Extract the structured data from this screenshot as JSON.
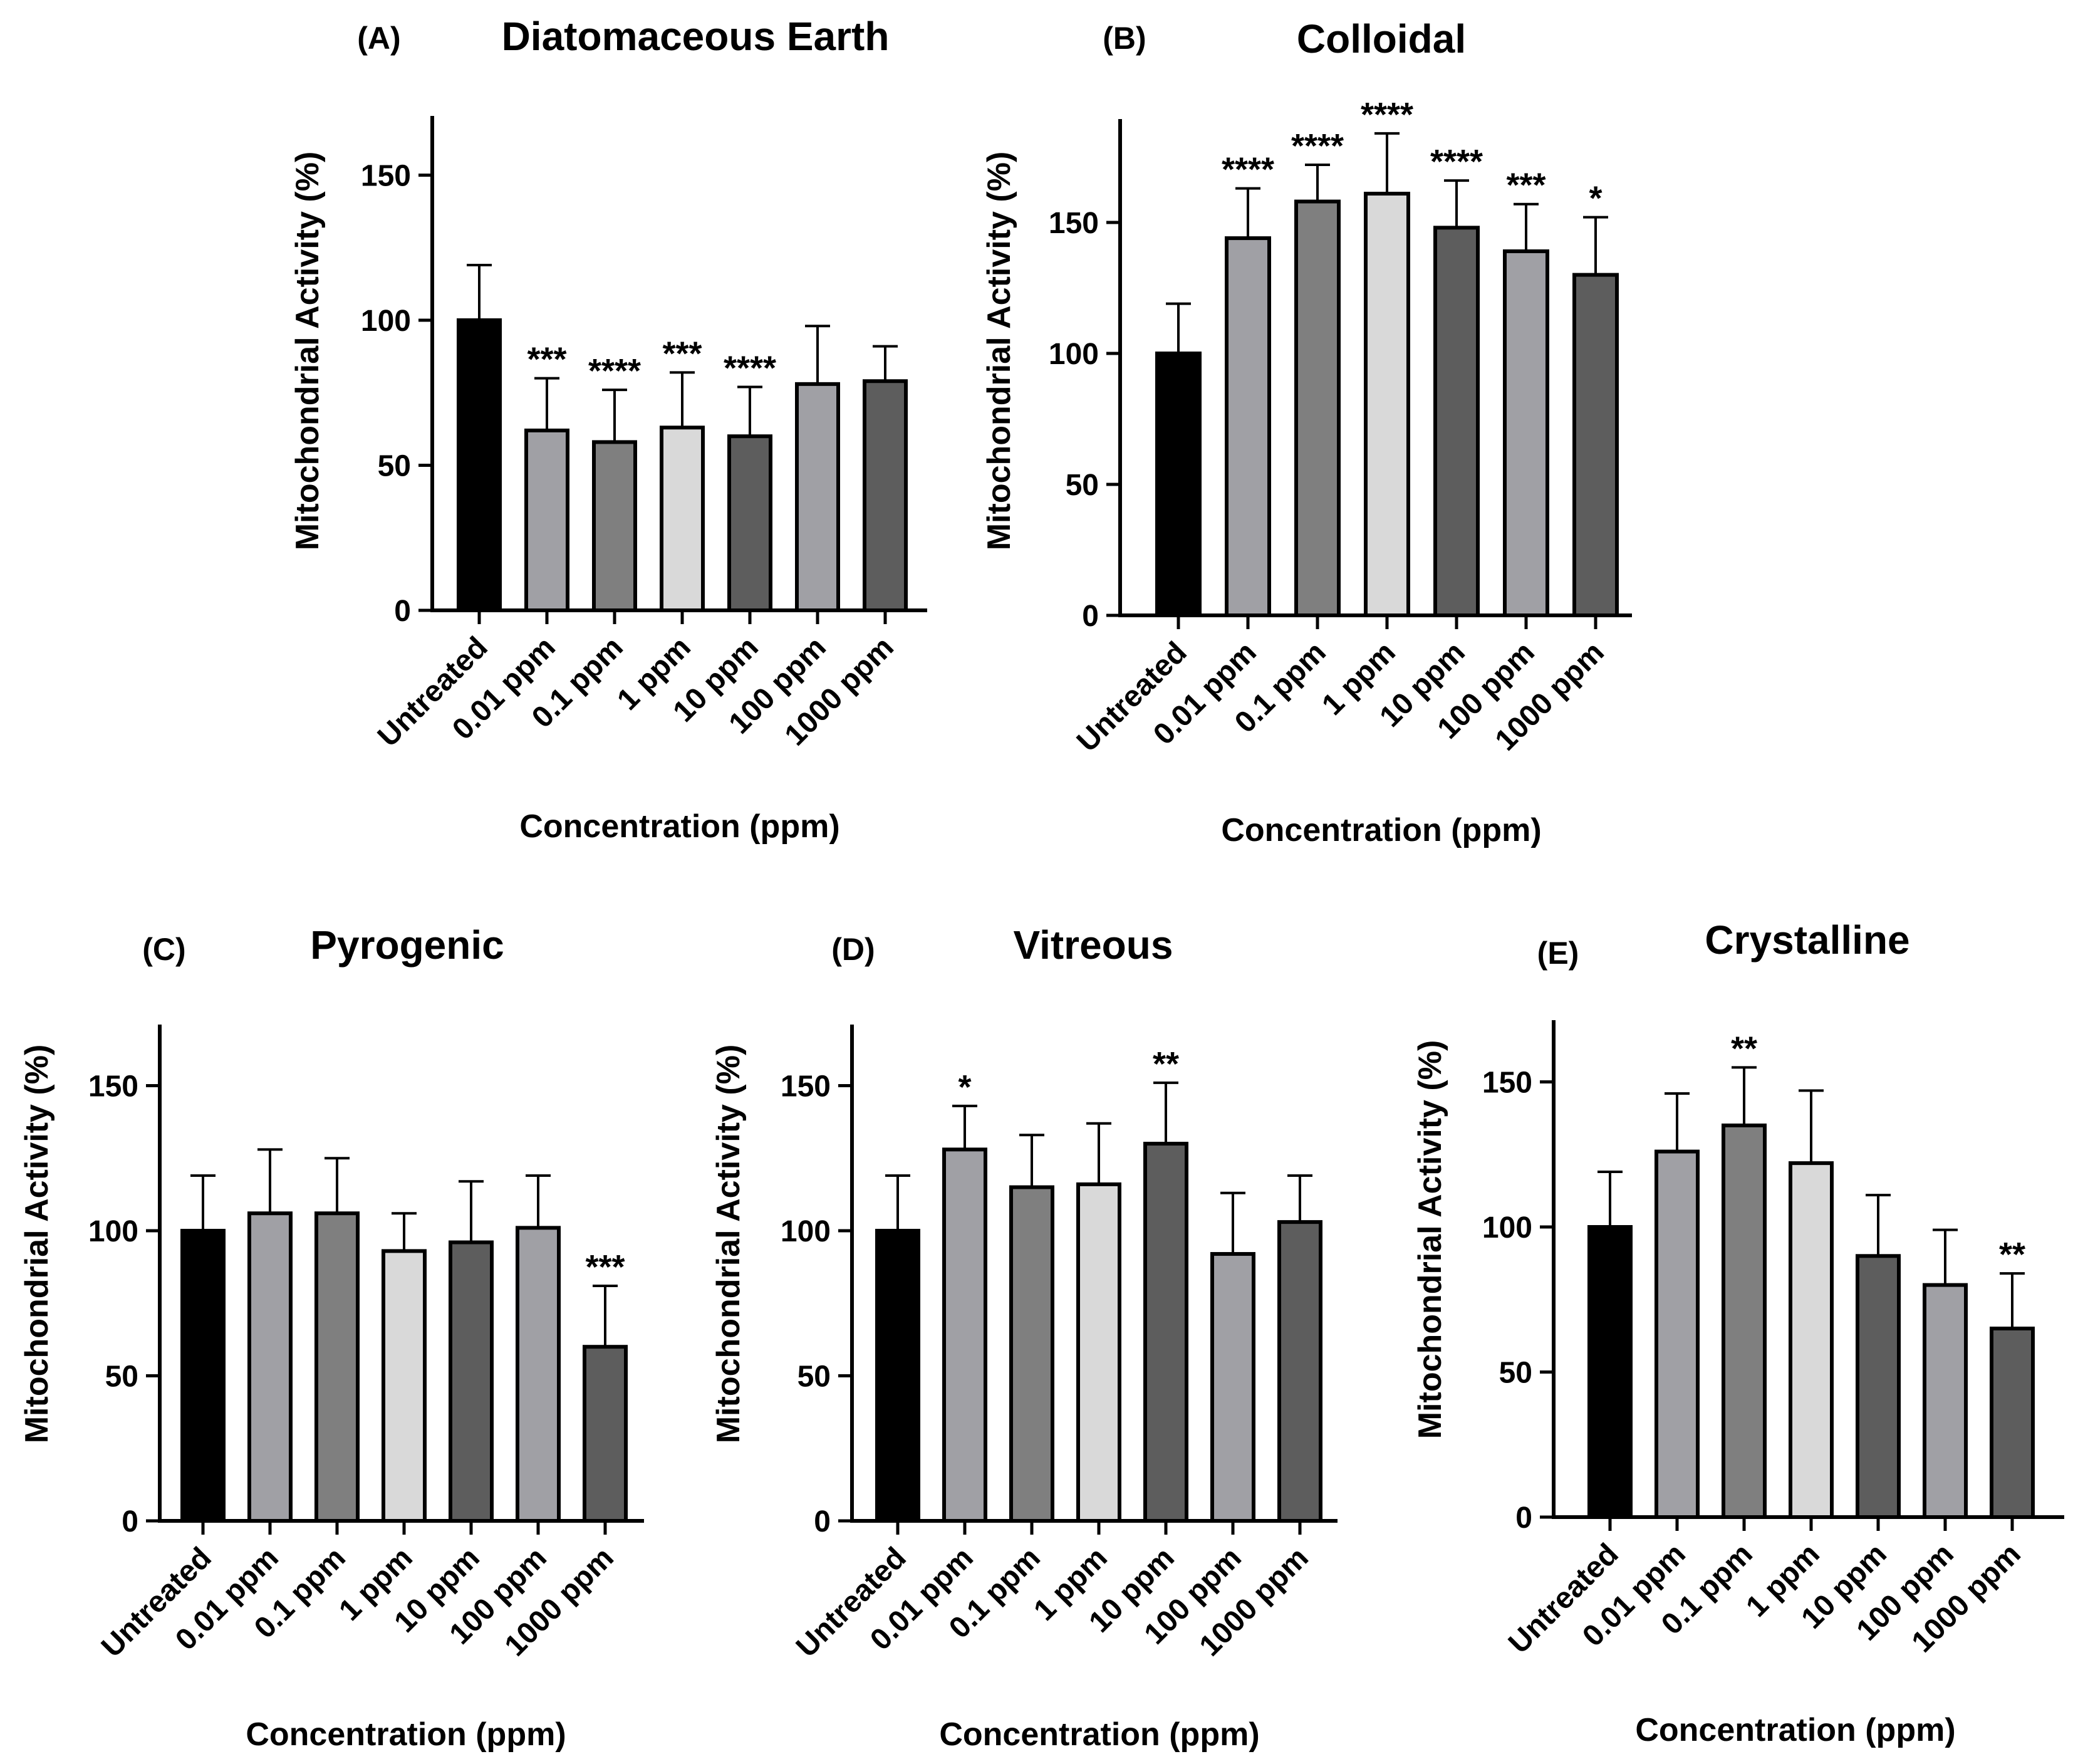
{
  "chart_data": [
    {
      "type": "bar",
      "panel": "(A)",
      "title": "Diatomaceous Earth",
      "xlabel": "Concentration (ppm)",
      "ylabel": "Mitochondrial Activity (%)",
      "ylim": [
        0,
        170
      ],
      "yticks": [
        "0",
        "50",
        "100",
        "150"
      ],
      "categories": [
        "Untreated",
        "0.01 ppm",
        "0.1 ppm",
        "1 ppm",
        "10 ppm",
        "100 ppm",
        "1000 ppm"
      ],
      "values": [
        100,
        62,
        58,
        63,
        60,
        78,
        79
      ],
      "errors": [
        19,
        18,
        18,
        19,
        17,
        20,
        12
      ],
      "significance": [
        "",
        "***",
        "****",
        "***",
        "****",
        "",
        ""
      ]
    },
    {
      "type": "bar",
      "panel": "(B)",
      "title": "Colloidal",
      "xlabel": "Concentration (ppm)",
      "ylabel": "Mitochondrial Activity (%)",
      "ylim": [
        0,
        190
      ],
      "yticks": [
        "0",
        "50",
        "100",
        "150"
      ],
      "categories": [
        "Untreated",
        "0.01 ppm",
        "0.1 ppm",
        "1 ppm",
        "10 ppm",
        "100 ppm",
        "1000 ppm"
      ],
      "values": [
        100,
        144,
        158,
        161,
        148,
        139,
        130
      ],
      "errors": [
        19,
        19,
        14,
        23,
        18,
        18,
        22
      ],
      "significance": [
        "",
        "****",
        "****",
        "****",
        "****",
        "***",
        "*"
      ]
    },
    {
      "type": "bar",
      "panel": "(C)",
      "title": "Pyrogenic",
      "xlabel": "Concentration (ppm)",
      "ylabel": "Mitochondrial Activity (%)",
      "ylim": [
        0,
        170
      ],
      "yticks": [
        "0",
        "50",
        "100",
        "150"
      ],
      "categories": [
        "Untreated",
        "0.01 ppm",
        "0.1 ppm",
        "1 ppm",
        "10 ppm",
        "100 ppm",
        "1000 ppm"
      ],
      "values": [
        100,
        106,
        106,
        93,
        96,
        101,
        60
      ],
      "errors": [
        19,
        22,
        19,
        13,
        21,
        18,
        21
      ],
      "significance": [
        "",
        "",
        "",
        "",
        "",
        "",
        "***"
      ]
    },
    {
      "type": "bar",
      "panel": "(D)",
      "title": "Vitreous",
      "xlabel": "Concentration (ppm)",
      "ylabel": "Mitochondrial Activity (%)",
      "ylim": [
        0,
        170
      ],
      "yticks": [
        "0",
        "50",
        "100",
        "150"
      ],
      "categories": [
        "Untreated",
        "0.01 ppm",
        "0.1 ppm",
        "1 ppm",
        "10 ppm",
        "100 ppm",
        "1000 ppm"
      ],
      "values": [
        100,
        128,
        115,
        116,
        130,
        92,
        103
      ],
      "errors": [
        19,
        15,
        18,
        21,
        21,
        21,
        16
      ],
      "significance": [
        "",
        "*",
        "",
        "",
        "**",
        "",
        ""
      ]
    },
    {
      "type": "bar",
      "panel": "(E)",
      "title": "Crystalline",
      "xlabel": "Concentration (ppm)",
      "ylabel": "Mitochondrial Activity (%)",
      "ylim": [
        0,
        170
      ],
      "yticks": [
        "0",
        "50",
        "100",
        "150"
      ],
      "categories": [
        "Untreated",
        "0.01 ppm",
        "0.1 ppm",
        "1 ppm",
        "10 ppm",
        "100 ppm",
        "1000 ppm"
      ],
      "values": [
        100,
        126,
        135,
        122,
        90,
        80,
        65
      ],
      "errors": [
        19,
        20,
        20,
        25,
        21,
        19,
        19
      ],
      "significance": [
        "",
        "",
        "**",
        "",
        "",
        "",
        "**"
      ]
    }
  ],
  "colors": {
    "bar_fills": [
      "#000000",
      "#a0a0a5",
      "#7f7f7f",
      "#d9d9d9",
      "#5d5d5d",
      "#a0a0a5",
      "#5d5d5d"
    ],
    "stroke": "#000000"
  }
}
